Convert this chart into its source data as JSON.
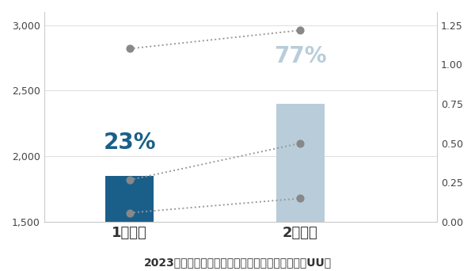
{
  "bar_values": [
    1850,
    2400
  ],
  "bar_colors": [
    "#1a5f8a",
    "#b8cdd9"
  ],
  "bar_width": 0.28,
  "bar_positions": [
    1,
    2
  ],
  "xlim": [
    0.5,
    2.8
  ],
  "ylim_left": [
    1500,
    3100
  ],
  "yticks_left": [
    1500,
    2000,
    2500,
    3000
  ],
  "yticks_right": [
    0.0,
    0.25,
    0.5,
    0.75,
    1.0,
    1.25
  ],
  "right_ymin": 0.0,
  "right_ymax": 1.25,
  "line1_x": [
    1.0,
    2.0
  ],
  "line1_y": [
    2820,
    2960
  ],
  "line2_x": [
    1.0,
    2.0
  ],
  "line2_y": [
    1820,
    2100
  ],
  "line3_x": [
    1.0,
    2.0
  ],
  "line3_y": [
    1570,
    1680
  ],
  "dot_color": "#888888",
  "dot_size": 40,
  "line_color": "#999999",
  "pct_label_1": "23%",
  "pct_label_2": "77%",
  "pct_color_1": "#1a5f8a",
  "pct_color_2": "#b8cdd9",
  "pct_fontsize": 20,
  "pct1_x": 1.0,
  "pct1_y": 2020,
  "pct2_x": 2.0,
  "pct2_y": 2680,
  "xlabel_1": "1回のみ",
  "xlabel_2": "2回以上",
  "xlabel_fontsize": 13,
  "title": "2023年プライムデー期間中の商品ページ来訪数とUU数",
  "title_fontsize": 10,
  "bg_color": "#ffffff",
  "tick_fontsize": 9,
  "grid_color": "#e0e0e0"
}
